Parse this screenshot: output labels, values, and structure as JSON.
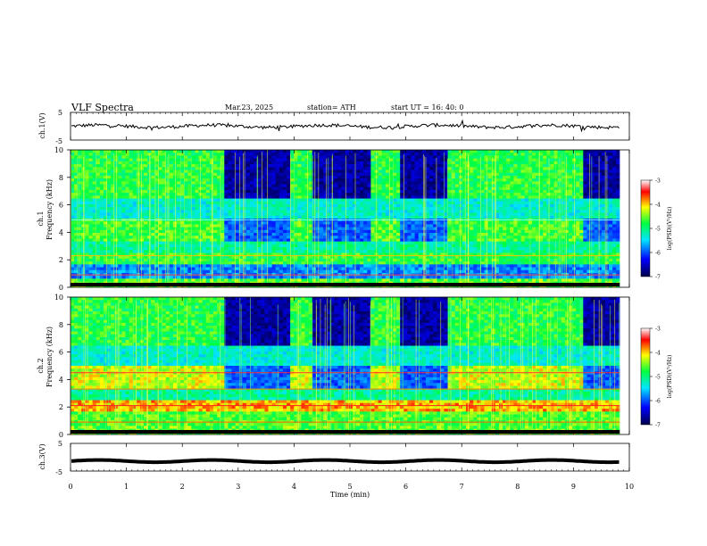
{
  "header": {
    "title": "VLF  Spectra",
    "date": "Mar.23, 2025",
    "station": "station= ATH",
    "start": "start  UT  =   16: 40: 0"
  },
  "chart_data": [
    {
      "type": "line",
      "panel": "channel-1 waveform",
      "ylabel": "ch.1(V)",
      "ylim": [
        -5,
        5
      ],
      "yticks": [
        "5",
        "-5"
      ],
      "x_range_min": [
        0,
        9.83
      ],
      "series": [
        {
          "name": "",
          "level_V": 0,
          "color": "#000000"
        }
      ]
    },
    {
      "type": "heatmap",
      "panel": "channel-1 spectrogram",
      "ylabel_lines": [
        "ch.1",
        "Frequency  (kHz)"
      ],
      "ylim_kHz": [
        0,
        10
      ],
      "yticks": [
        "0",
        "2",
        "4",
        "6",
        "8",
        "10"
      ],
      "colorbar": {
        "label": "log(PSD)(V²/Hz)",
        "range": [
          -7,
          -3
        ],
        "ticks": [
          "-3",
          "-4",
          "-5",
          "-6",
          "-7"
        ],
        "colors": [
          "#00004a",
          "#0000ff",
          "#00e5ff",
          "#00ff40",
          "#ffff00",
          "#ff0000",
          "#ffffff"
        ]
      },
      "quiet_intervals_min": [
        [
          2.75,
          3.9
        ],
        [
          4.3,
          5.35
        ],
        [
          5.9,
          6.75
        ],
        [
          9.15,
          9.83
        ]
      ]
    },
    {
      "type": "heatmap",
      "panel": "channel-2 spectrogram",
      "ylabel_lines": [
        "ch.2",
        "Frequency  (kHz)"
      ],
      "ylim_kHz": [
        0,
        10
      ],
      "yticks": [
        "0",
        "2",
        "4",
        "6",
        "8",
        "10"
      ],
      "colorbar": {
        "label": "log(PSD)(V²/Hz)",
        "range": [
          -7,
          -3
        ],
        "ticks": [
          "-3",
          "-4",
          "-5",
          "-6",
          "-7"
        ],
        "colors": [
          "#00004a",
          "#0000ff",
          "#00e5ff",
          "#00ff40",
          "#ffff00",
          "#ff0000",
          "#ffffff"
        ]
      },
      "quiet_intervals_min": [
        [
          2.75,
          3.9
        ],
        [
          4.3,
          5.35
        ],
        [
          5.9,
          6.75
        ],
        [
          9.15,
          9.83
        ]
      ]
    },
    {
      "type": "line",
      "panel": "channel-3 waveform",
      "ylabel": "ch.3(V)",
      "ylim": [
        -5,
        5
      ],
      "yticks": [
        "5",
        "-5"
      ],
      "series": [
        {
          "name": "",
          "level_V": -1.4,
          "color": "#000000"
        }
      ]
    }
  ],
  "x_axis": {
    "label": "Time  (min)",
    "range": [
      0,
      10
    ],
    "ticks": [
      "0",
      "1",
      "2",
      "3",
      "4",
      "5",
      "6",
      "7",
      "8",
      "9",
      "10"
    ],
    "data_end_min": 9.83
  }
}
